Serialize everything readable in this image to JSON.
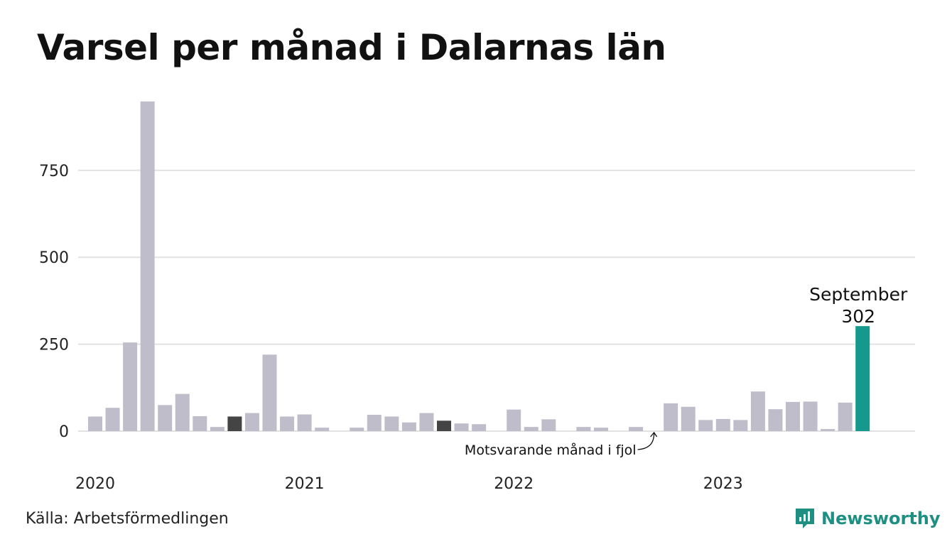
{
  "title": "Varsel per månad i Dalarnas län",
  "source": "Källa: Arbetsförmedlingen",
  "brand": "Newsworthy",
  "colors": {
    "bar": "#c0bdca",
    "highlight": "#15998c",
    "comparison": "#444444",
    "grid": "#e2e2e2",
    "brand": "#1f8f82"
  },
  "chart_data": {
    "type": "bar",
    "x": [
      "2020-01",
      "2020-02",
      "2020-03",
      "2020-04",
      "2020-05",
      "2020-06",
      "2020-07",
      "2020-08",
      "2020-09",
      "2020-10",
      "2020-11",
      "2020-12",
      "2021-01",
      "2021-02",
      "2021-03",
      "2021-04",
      "2021-05",
      "2021-06",
      "2021-07",
      "2021-08",
      "2021-09",
      "2021-10",
      "2021-11",
      "2021-12",
      "2022-01",
      "2022-02",
      "2022-03",
      "2022-04",
      "2022-05",
      "2022-06",
      "2022-07",
      "2022-08",
      "2022-09",
      "2022-10",
      "2022-11",
      "2022-12",
      "2023-01",
      "2023-02",
      "2023-03",
      "2023-04",
      "2023-05",
      "2023-06",
      "2023-07",
      "2023-08",
      "2023-09"
    ],
    "values": [
      42,
      67,
      255,
      948,
      75,
      107,
      43,
      12,
      42,
      52,
      220,
      42,
      48,
      10,
      0,
      10,
      47,
      42,
      25,
      52,
      30,
      22,
      20,
      0,
      62,
      12,
      34,
      0,
      12,
      10,
      0,
      12,
      0,
      80,
      70,
      32,
      35,
      32,
      114,
      63,
      84,
      85,
      6,
      82,
      302
    ],
    "highlight_index": 44,
    "comparison_indices": [
      8,
      20
    ],
    "y_ticks": [
      0,
      250,
      500,
      750
    ],
    "ylim": [
      0,
      960
    ],
    "x_tick_labels": [
      {
        "label": "2020",
        "x": "2020-01"
      },
      {
        "label": "2021",
        "x": "2021-01"
      },
      {
        "label": "2022",
        "x": "2022-01"
      },
      {
        "label": "2023",
        "x": "2023-01"
      }
    ],
    "highlight_label": {
      "month": "September",
      "value": "302"
    },
    "annotation": "Motsvarande månad i fjol",
    "grid": true,
    "legend": "none"
  }
}
